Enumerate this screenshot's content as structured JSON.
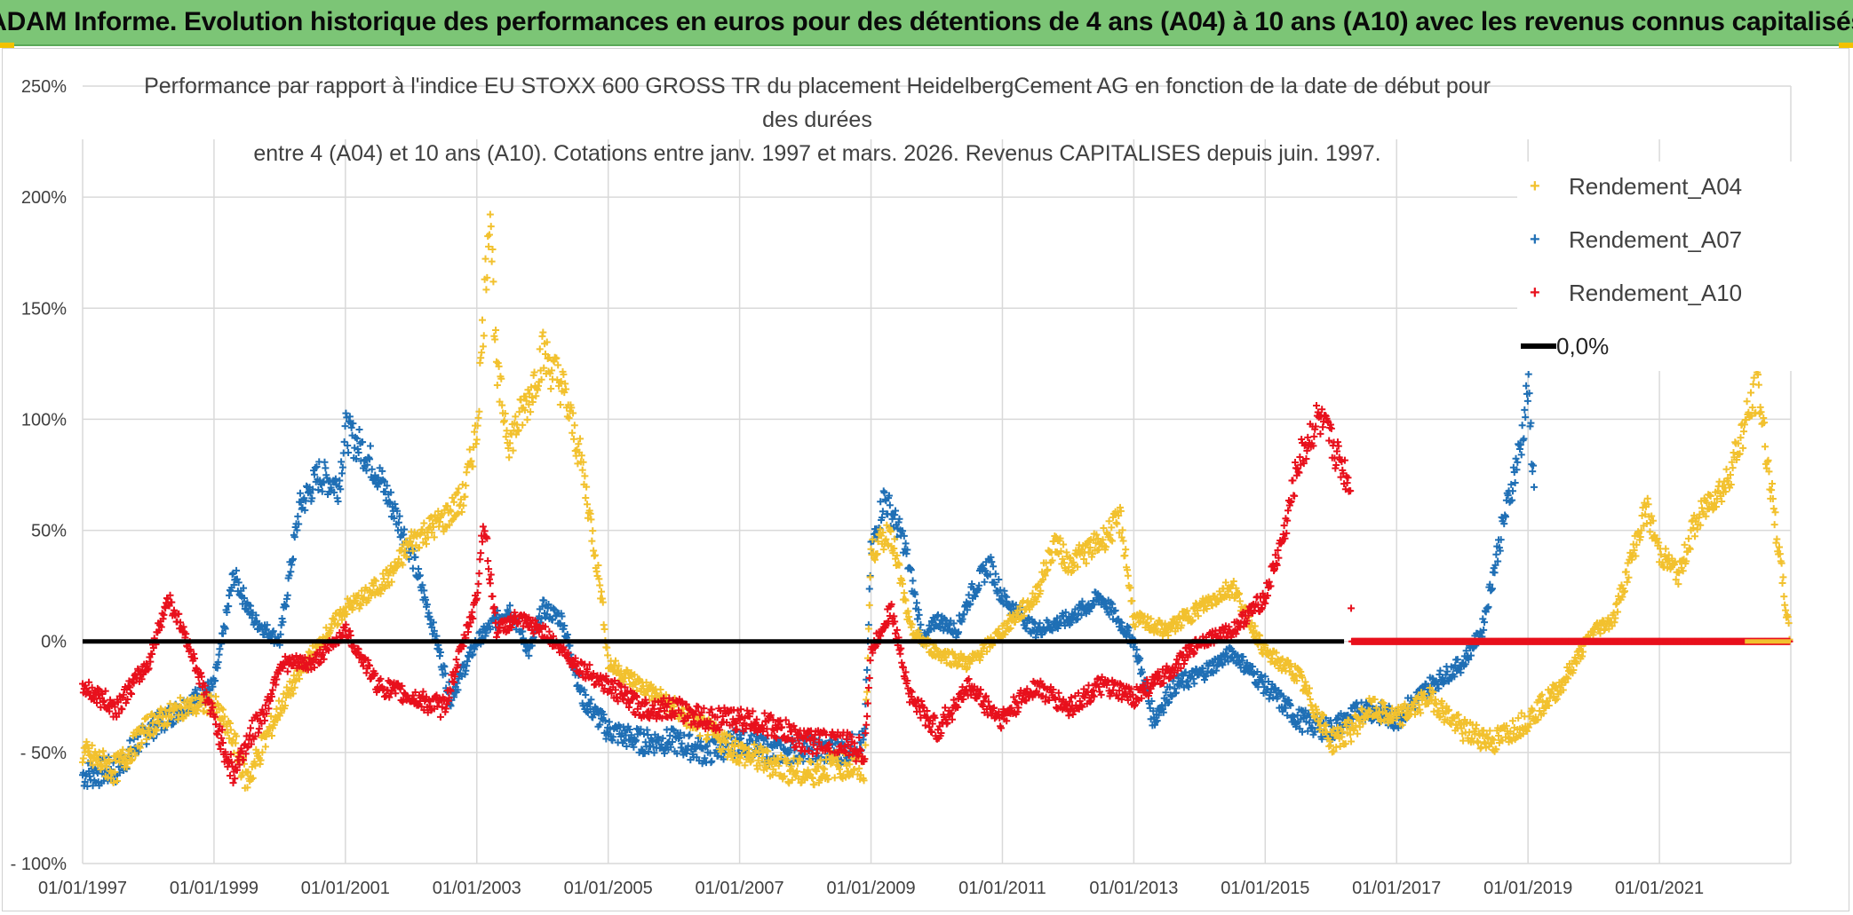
{
  "banner": {
    "title": "ADAM Informe. Evolution historique des performances en euros pour des détentions de 4 ans (A04) à 10 ans (A10) avec les revenus connus capitalisés"
  },
  "colors": {
    "banner_bg": "#7cc576",
    "A04": "#f2c12e",
    "A07": "#1f6fb5",
    "A10": "#e8101c",
    "zero_line": "#000000",
    "grid": "#d9d9d9",
    "text": "#404040"
  },
  "chart_data": {
    "type": "scatter",
    "title_line1": "Performance par rapport à l'indice EU STOXX 600 GROSS TR  du placement HeidelbergCement AG en fonction de la date de début pour des durées",
    "title_line2": "entre 4 (A04) et 10 ans (A10). Cotations entre janv. 1997 et mars. 2026. Revenus CAPITALISES depuis juin. 1997.",
    "x_range": [
      "1997-01-01",
      "2022-12-31"
    ],
    "ylim": [
      -100,
      250
    ],
    "y_ticks": [
      250,
      200,
      150,
      100,
      50,
      0,
      -50,
      -100
    ],
    "y_tick_labels": [
      "250%",
      "200%",
      "150%",
      "100%",
      "50%",
      "0%",
      "- 50%",
      "- 100%"
    ],
    "x_tick_labels": [
      "01/01/1997",
      "01/01/1999",
      "01/01/2001",
      "01/01/2003",
      "01/01/2005",
      "01/01/2007",
      "01/01/2009",
      "01/01/2011",
      "01/01/2013",
      "01/01/2015",
      "01/01/2017",
      "01/01/2019",
      "01/01/2021"
    ],
    "grid": true,
    "legend_position": "top-right",
    "series": [
      {
        "name": "Rendement_A04",
        "marker": "+",
        "x": [
          1997.0,
          1997.5,
          1998.0,
          1998.5,
          1999.0,
          1999.3,
          1999.5,
          2000.0,
          2000.5,
          2001.0,
          2001.3,
          2001.7,
          2002.0,
          2002.5,
          2002.8,
          2003.0,
          2003.1,
          2003.2,
          2003.3,
          2003.5,
          2003.8,
          2004.0,
          2004.3,
          2004.6,
          2004.9,
          2005.0,
          2005.5,
          2006.0,
          2006.5,
          2007.0,
          2007.5,
          2008.0,
          2008.5,
          2008.9,
          2009.0,
          2009.3,
          2009.6,
          2010.0,
          2010.5,
          2011.0,
          2011.5,
          2011.8,
          2012.0,
          2012.5,
          2012.8,
          2013.0,
          2013.5,
          2014.0,
          2014.5,
          2015.0,
          2015.5,
          2016.0,
          2016.3,
          2016.6,
          2017.0,
          2017.5,
          2018.0,
          2018.5,
          2019.0,
          2019.5,
          2020.0,
          2020.3,
          2020.5,
          2020.8,
          2021.0,
          2021.3,
          2021.5,
          2021.8,
          2022.0,
          2022.5,
          2022.99
        ],
        "y": [
          -50,
          -58,
          -38,
          -30,
          -28,
          -45,
          -63,
          -30,
          -5,
          15,
          20,
          30,
          45,
          55,
          65,
          95,
          145,
          200,
          120,
          90,
          110,
          130,
          115,
          80,
          20,
          -10,
          -20,
          -30,
          -40,
          -50,
          -55,
          -60,
          -55,
          -58,
          40,
          50,
          5,
          -5,
          -10,
          5,
          20,
          45,
          35,
          45,
          55,
          10,
          5,
          15,
          25,
          -5,
          -15,
          -45,
          -40,
          -30,
          -35,
          -25,
          -40,
          -45,
          -35,
          -20,
          5,
          10,
          30,
          60,
          40,
          30,
          50,
          65,
          70,
          115,
          0
        ]
      },
      {
        "name": "Rendement_A07",
        "marker": "+",
        "x": [
          1997.0,
          1997.5,
          1998.0,
          1998.5,
          1999.0,
          1999.3,
          1999.6,
          2000.0,
          2000.3,
          2000.6,
          2000.9,
          2001.0,
          2001.3,
          2001.5,
          2001.8,
          2002.0,
          2002.3,
          2002.6,
          2003.0,
          2003.3,
          2003.5,
          2003.8,
          2004.0,
          2004.3,
          2004.6,
          2005.0,
          2005.5,
          2006.0,
          2006.5,
          2007.0,
          2007.5,
          2008.0,
          2008.5,
          2008.9,
          2009.0,
          2009.2,
          2009.5,
          2009.8,
          2010.0,
          2010.3,
          2010.5,
          2010.8,
          2011.0,
          2011.5,
          2012.0,
          2012.5,
          2013.0,
          2013.3,
          2013.6,
          2014.0,
          2014.5,
          2015.0,
          2015.5,
          2016.0,
          2016.5,
          2017.0,
          2017.5,
          2018.0,
          2018.3,
          2018.6,
          2018.9,
          2019.0,
          2019.1
        ],
        "y": [
          -60,
          -58,
          -40,
          -30,
          -20,
          30,
          10,
          0,
          60,
          75,
          70,
          95,
          85,
          75,
          55,
          40,
          10,
          -25,
          0,
          10,
          15,
          -5,
          15,
          10,
          -25,
          -40,
          -45,
          -45,
          -50,
          -45,
          -50,
          -48,
          -50,
          -45,
          40,
          65,
          45,
          0,
          10,
          5,
          20,
          35,
          20,
          5,
          10,
          20,
          0,
          -35,
          -20,
          -15,
          -5,
          -20,
          -35,
          -40,
          -30,
          -35,
          -20,
          -10,
          5,
          50,
          90,
          115,
          65
        ]
      },
      {
        "name": "Rendement_A10",
        "marker": "+",
        "x": [
          1997.0,
          1997.5,
          1998.0,
          1998.3,
          1998.6,
          1999.0,
          1999.3,
          1999.5,
          1999.8,
          2000.0,
          2000.5,
          2001.0,
          2001.5,
          2002.0,
          2002.5,
          2003.0,
          2003.1,
          2003.3,
          2003.6,
          2004.0,
          2004.5,
          2005.0,
          2005.5,
          2006.0,
          2006.5,
          2007.0,
          2007.5,
          2008.0,
          2008.5,
          2008.9,
          2009.0,
          2009.3,
          2009.6,
          2010.0,
          2010.5,
          2010.8,
          2011.0,
          2011.5,
          2012.0,
          2012.5,
          2013.0,
          2013.5,
          2014.0,
          2014.5,
          2015.0,
          2015.3,
          2015.5,
          2015.8,
          2016.0,
          2016.3,
          2016.31,
          2017.0,
          2018.0,
          2019.0,
          2020.0,
          2021.0,
          2022.0,
          2022.99
        ],
        "y": [
          -20,
          -30,
          -10,
          20,
          0,
          -35,
          -60,
          -45,
          -30,
          -10,
          -10,
          5,
          -20,
          -25,
          -30,
          20,
          55,
          5,
          10,
          5,
          -10,
          -20,
          -30,
          -30,
          -35,
          -35,
          -38,
          -45,
          -45,
          -50,
          -5,
          15,
          -25,
          -40,
          -20,
          -30,
          -35,
          -20,
          -30,
          -20,
          -25,
          -15,
          0,
          5,
          20,
          50,
          80,
          100,
          90,
          70,
          0,
          0,
          0,
          0,
          0,
          0,
          0,
          0
        ]
      },
      {
        "name": "0,0%",
        "type": "line",
        "x": [
          1997.0,
          2016.2
        ],
        "y": [
          0,
          0
        ]
      }
    ]
  },
  "legend": {
    "items": [
      "Rendement_A04",
      "Rendement_A07",
      "Rendement_A10",
      "0,0%"
    ]
  }
}
